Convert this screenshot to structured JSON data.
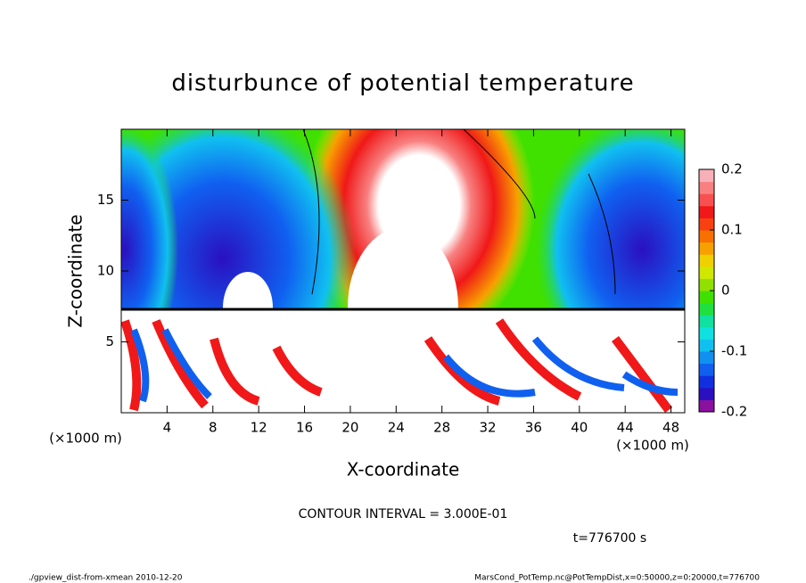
{
  "chart_data": {
    "type": "contour",
    "title": "disturbunce of potential temperature",
    "x_label": "X-coordinate",
    "y_label": "Z-coordinate",
    "x_unit": "(×1000 m)",
    "y_unit": "(×1000 m)",
    "xlim": [
      0,
      49.2
    ],
    "ylim": [
      0,
      20
    ],
    "xticks": [
      4,
      8,
      12,
      16,
      20,
      24,
      28,
      32,
      36,
      40,
      44,
      48
    ],
    "yticks": [
      5,
      10,
      15
    ],
    "clim": [
      -0.2,
      0.2
    ],
    "cticks": [
      -0.2,
      -0.1,
      0,
      0.1,
      0.2
    ],
    "colors": [
      "#8a10a0",
      "#2a10c0",
      "#1030e0",
      "#1060f0",
      "#1090f0",
      "#10c0f0",
      "#10e0e0",
      "#10e0a0",
      "#20e040",
      "#40e000",
      "#90e000",
      "#d0e800",
      "#f0d000",
      "#f8a000",
      "#f87000",
      "#f84010",
      "#f01818",
      "#f85050",
      "#f88080",
      "#f8b0b8"
    ],
    "annotation": "CONTOUR INTERVAL = 3.000E-01",
    "time_label": "t=776700 s",
    "footer_left": "./gpview_dist-from-xmean  2010-12-20",
    "footer_right": "MarsCond_PotTemp.nc@PotTempDist,x=0:50000,z=0:20000,t=776700"
  }
}
